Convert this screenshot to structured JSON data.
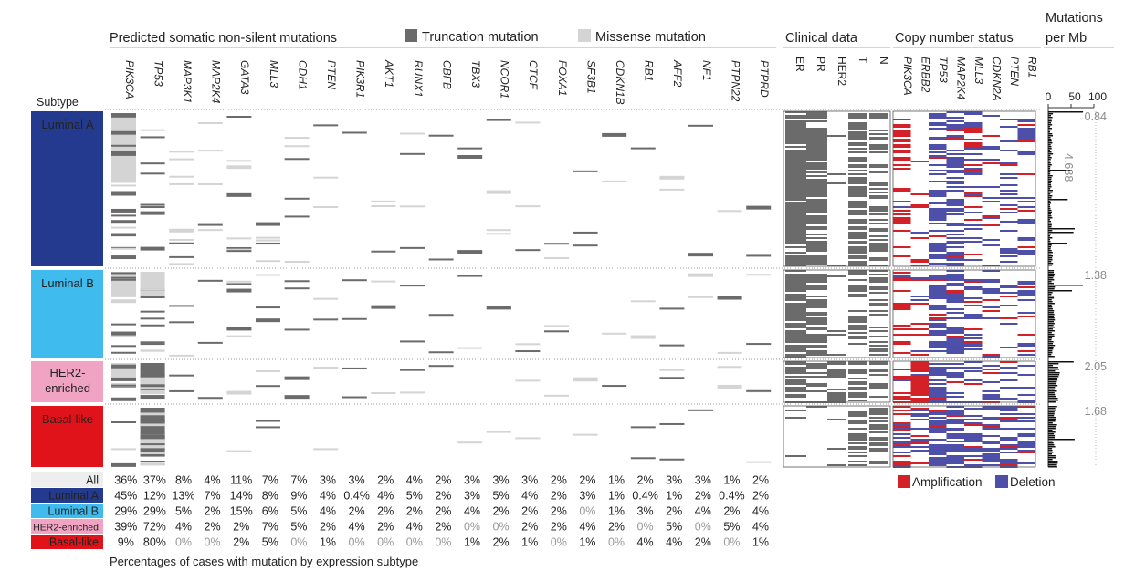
{
  "headers": {
    "subtype": "Subtype",
    "mutations": "Predicted somatic non-silent mutations",
    "truncation_legend": "Truncation mutation",
    "missense_legend": "Missense mutation",
    "clinical": "Clinical data",
    "copy_number": "Copy number status",
    "mut_per_mb_line1": "Mutations",
    "mut_per_mb_line2": "per Mb",
    "percent_caption": "Percentages of cases with mutation by expression subtype",
    "amplification_legend": "Amplification",
    "deletion_legend": "Deletion"
  },
  "colors": {
    "truncation": "#6b6b6b",
    "missense": "#d4d4d4",
    "amplification": "#d42127",
    "deletion": "#4d4fa8",
    "luminal_a": "#243a8e",
    "luminal_b": "#3fbbee",
    "her2": "#f0a3c2",
    "basal": "#e0131b",
    "all": "#eeeeee"
  },
  "chart_data": {
    "type": "heatmap",
    "genes": [
      "PIK3CA",
      "TP53",
      "MAP3K1",
      "MAP2K4",
      "GATA3",
      "MLL3",
      "CDH1",
      "PTEN",
      "PIK3R1",
      "AKT1",
      "RUNX1",
      "CBFB",
      "TBX3",
      "NCOR1",
      "CTCF",
      "FOXA1",
      "SF3B1",
      "CDKN1B",
      "RB1",
      "AFF2",
      "NF1",
      "PTPN22",
      "PTPRD"
    ],
    "clinical_columns": [
      "ER",
      "PR",
      "HER2",
      "T",
      "N"
    ],
    "copy_number_genes": [
      "PIK3CA",
      "ERBB2",
      "TP53",
      "MAP2K4",
      "MLL3",
      "CDKN2A",
      "PTEN",
      "RB1"
    ],
    "subtypes": [
      {
        "label": "Luminal A",
        "median_mutations_per_mb": "0.84"
      },
      {
        "label": "Luminal B",
        "median_mutations_per_mb": "1.38"
      },
      {
        "label": "HER2-\nenriched",
        "median_mutations_per_mb": "2.05"
      },
      {
        "label": "Basal-like",
        "median_mutations_per_mb": "1.68"
      }
    ],
    "outlier_annotation": "4.688",
    "mutations_axis": {
      "ticks": [
        "0",
        "50",
        "100"
      ],
      "range": [
        0,
        100
      ]
    },
    "percent_table": [
      {
        "label": "All",
        "values": [
          "36%",
          "37%",
          "8%",
          "4%",
          "11%",
          "7%",
          "7%",
          "3%",
          "3%",
          "2%",
          "4%",
          "2%",
          "3%",
          "3%",
          "3%",
          "2%",
          "2%",
          "1%",
          "2%",
          "3%",
          "3%",
          "1%",
          "2%"
        ]
      },
      {
        "label": "Luminal A",
        "values": [
          "45%",
          "12%",
          "13%",
          "7%",
          "14%",
          "8%",
          "9%",
          "4%",
          "0.4%",
          "4%",
          "5%",
          "2%",
          "3%",
          "5%",
          "4%",
          "2%",
          "3%",
          "1%",
          "0.4%",
          "1%",
          "2%",
          "0.4%",
          "2%"
        ]
      },
      {
        "label": "Luminal B",
        "values": [
          "29%",
          "29%",
          "5%",
          "2%",
          "15%",
          "6%",
          "5%",
          "4%",
          "2%",
          "2%",
          "2%",
          "2%",
          "4%",
          "2%",
          "2%",
          "2%",
          "0%",
          "1%",
          "3%",
          "2%",
          "4%",
          "2%",
          "4%"
        ]
      },
      {
        "label": "HER2-enriched",
        "values": [
          "39%",
          "72%",
          "4%",
          "2%",
          "2%",
          "7%",
          "5%",
          "2%",
          "4%",
          "2%",
          "4%",
          "2%",
          "0%",
          "0%",
          "2%",
          "2%",
          "4%",
          "2%",
          "0%",
          "5%",
          "0%",
          "5%",
          "4%"
        ]
      },
      {
        "label": "Basal-like",
        "values": [
          "9%",
          "80%",
          "0%",
          "0%",
          "2%",
          "5%",
          "0%",
          "1%",
          "0%",
          "0%",
          "0%",
          "0%",
          "1%",
          "2%",
          "1%",
          "0%",
          "1%",
          "0%",
          "4%",
          "4%",
          "2%",
          "0%",
          "1%"
        ]
      }
    ]
  }
}
